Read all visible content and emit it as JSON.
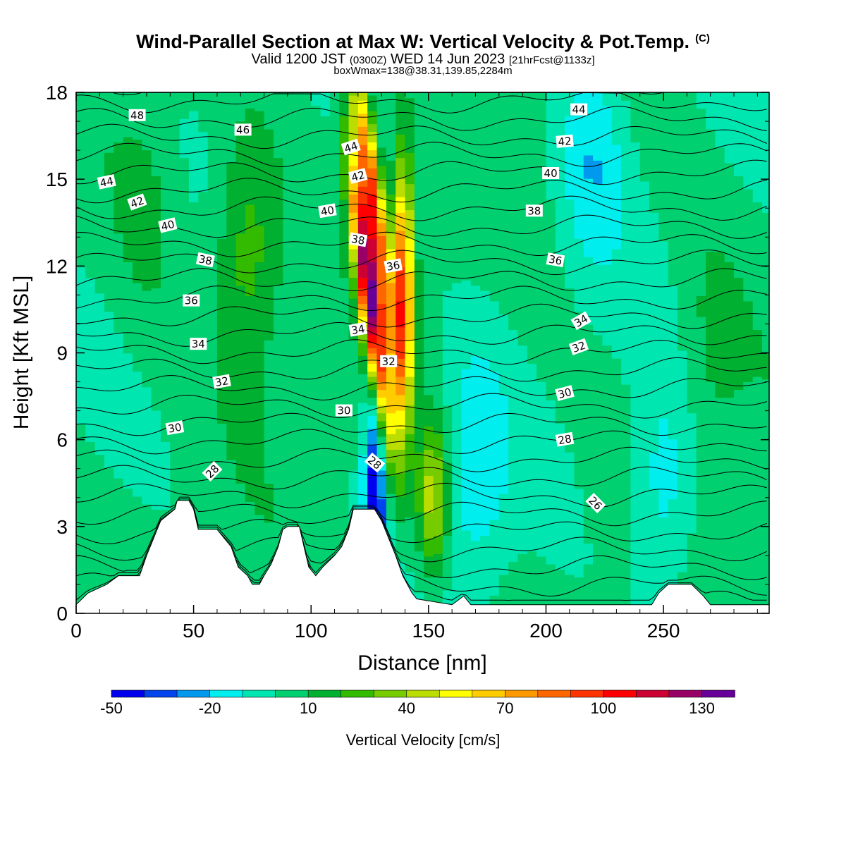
{
  "header": {
    "title": "Wind-Parallel Section at Max W: Vertical Velocity & Pot.Temp.",
    "copyright": "(C)",
    "valid_main_a": "Valid 1200 JST",
    "valid_small_a": "(0300Z)",
    "valid_main_b": "WED 14 Jun 2023",
    "valid_small_b": "[21hrFcst@1133z]",
    "box_info": "boxWmax=138@38.31,139.85,2284m"
  },
  "colors": {
    "terrain": "#ffffff",
    "contour": "#000000",
    "background": "#ffffff"
  },
  "chart_data": {
    "type": "heatmap",
    "xlabel": "Distance [nm]",
    "ylabel": "Height [Kft MSL]",
    "xlim": [
      0,
      295
    ],
    "ylim": [
      0,
      18
    ],
    "xticks": [
      0,
      50,
      100,
      150,
      200,
      250
    ],
    "yticks": [
      0,
      3,
      6,
      9,
      12,
      15,
      18
    ],
    "colorbar": {
      "label": "Vertical Velocity [cm/s]",
      "min": -50,
      "step": 10,
      "tick_values": [
        "-50",
        "-20",
        "10",
        "40",
        "70",
        "100",
        "130"
      ],
      "colors": [
        "#0000ee",
        "#0044ee",
        "#0099ee",
        "#00eeee",
        "#00e6b0",
        "#00d070",
        "#00b030",
        "#33bb00",
        "#77cc00",
        "#bbdd00",
        "#ffff00",
        "#ffcc00",
        "#ff9900",
        "#ff6600",
        "#ff3300",
        "#ff0000",
        "#cc0033",
        "#990066",
        "#660099"
      ]
    },
    "field": [
      {
        "x": 73,
        "y": 12.5,
        "w": 25
      },
      {
        "x": 125,
        "y": 11,
        "w": 125
      },
      {
        "x": 126,
        "y": 14.5,
        "w": 90
      },
      {
        "x": 139,
        "y": 11,
        "w": 90
      },
      {
        "x": 152,
        "y": 4,
        "w": 45
      },
      {
        "x": 127,
        "y": 3.5,
        "w": -50
      },
      {
        "x": 170,
        "y": 5,
        "w": -20
      },
      {
        "x": 220,
        "y": 16,
        "w": -20
      },
      {
        "x": 250,
        "y": 4,
        "w": -20
      },
      {
        "x": 30,
        "y": 14,
        "w": 10
      },
      {
        "x": 270,
        "y": 9,
        "w": 10
      }
    ],
    "terrain_height": [
      {
        "x": 0,
        "y": 0.3
      },
      {
        "x": 5,
        "y": 0.7
      },
      {
        "x": 13,
        "y": 1
      },
      {
        "x": 18,
        "y": 1.3
      },
      {
        "x": 27,
        "y": 1.3
      },
      {
        "x": 30,
        "y": 2
      },
      {
        "x": 33,
        "y": 2.6
      },
      {
        "x": 36,
        "y": 3.2
      },
      {
        "x": 42,
        "y": 3.6
      },
      {
        "x": 43,
        "y": 3.9
      },
      {
        "x": 48,
        "y": 3.9
      },
      {
        "x": 50,
        "y": 3.6
      },
      {
        "x": 52,
        "y": 2.9
      },
      {
        "x": 60,
        "y": 2.9
      },
      {
        "x": 63,
        "y": 2.6
      },
      {
        "x": 66,
        "y": 2.3
      },
      {
        "x": 69,
        "y": 1.6
      },
      {
        "x": 73,
        "y": 1.3
      },
      {
        "x": 75,
        "y": 1.0
      },
      {
        "x": 78,
        "y": 1.0
      },
      {
        "x": 80,
        "y": 1.3
      },
      {
        "x": 83,
        "y": 1.7
      },
      {
        "x": 86,
        "y": 2.3
      },
      {
        "x": 88,
        "y": 2.9
      },
      {
        "x": 90,
        "y": 3.0
      },
      {
        "x": 95,
        "y": 3.0
      },
      {
        "x": 97,
        "y": 2.3
      },
      {
        "x": 99,
        "y": 1.6
      },
      {
        "x": 102,
        "y": 1.3
      },
      {
        "x": 105,
        "y": 1.6
      },
      {
        "x": 110,
        "y": 2.0
      },
      {
        "x": 113,
        "y": 2.3
      },
      {
        "x": 116,
        "y": 2.9
      },
      {
        "x": 118,
        "y": 3.6
      },
      {
        "x": 127,
        "y": 3.6
      },
      {
        "x": 130,
        "y": 3.2
      },
      {
        "x": 133,
        "y": 2.6
      },
      {
        "x": 136,
        "y": 2.0
      },
      {
        "x": 139,
        "y": 1.3
      },
      {
        "x": 141,
        "y": 1.0
      },
      {
        "x": 143,
        "y": 0.7
      },
      {
        "x": 145,
        "y": 0.5
      },
      {
        "x": 160,
        "y": 0.3
      },
      {
        "x": 165,
        "y": 0.6
      },
      {
        "x": 168,
        "y": 0.3
      },
      {
        "x": 245,
        "y": 0.3
      },
      {
        "x": 248,
        "y": 0.7
      },
      {
        "x": 252,
        "y": 1.0
      },
      {
        "x": 262,
        "y": 1.0
      },
      {
        "x": 267,
        "y": 0.6
      },
      {
        "x": 270,
        "y": 0.3
      },
      {
        "x": 295,
        "y": 0.3
      }
    ],
    "contour_labels": [
      {
        "text": "48",
        "x": 26,
        "y": 17.2,
        "angle": 0
      },
      {
        "text": "46",
        "x": 71,
        "y": 16.7,
        "angle": 0
      },
      {
        "text": "44",
        "x": 13,
        "y": 14.9,
        "angle": -12
      },
      {
        "text": "42",
        "x": 26,
        "y": 14.2,
        "angle": -20
      },
      {
        "text": "40",
        "x": 39,
        "y": 13.4,
        "angle": -14
      },
      {
        "text": "38",
        "x": 55,
        "y": 12.2,
        "angle": 12
      },
      {
        "text": "36",
        "x": 49,
        "y": 10.8,
        "angle": 0
      },
      {
        "text": "34",
        "x": 52,
        "y": 9.3,
        "angle": 0
      },
      {
        "text": "32",
        "x": 62,
        "y": 8.0,
        "angle": -10
      },
      {
        "text": "30",
        "x": 42,
        "y": 6.4,
        "angle": -10
      },
      {
        "text": "28",
        "x": 58,
        "y": 4.9,
        "angle": -45
      },
      {
        "text": "44",
        "x": 117,
        "y": 16.1,
        "angle": -18
      },
      {
        "text": "42",
        "x": 120,
        "y": 15.1,
        "angle": -15
      },
      {
        "text": "40",
        "x": 107,
        "y": 13.9,
        "angle": -10
      },
      {
        "text": "38",
        "x": 120,
        "y": 12.9,
        "angle": 10
      },
      {
        "text": "36",
        "x": 135,
        "y": 12.0,
        "angle": -10
      },
      {
        "text": "34",
        "x": 120,
        "y": 9.8,
        "angle": -10
      },
      {
        "text": "32",
        "x": 133,
        "y": 8.7,
        "angle": 0
      },
      {
        "text": "30",
        "x": 114,
        "y": 7.0,
        "angle": 0
      },
      {
        "text": "28",
        "x": 127,
        "y": 5.2,
        "angle": 40
      },
      {
        "text": "44",
        "x": 214,
        "y": 17.4,
        "angle": 0
      },
      {
        "text": "42",
        "x": 208,
        "y": 16.3,
        "angle": -5
      },
      {
        "text": "40",
        "x": 202,
        "y": 15.2,
        "angle": 0
      },
      {
        "text": "38",
        "x": 195,
        "y": 13.9,
        "angle": 0
      },
      {
        "text": "36",
        "x": 204,
        "y": 12.2,
        "angle": 10
      },
      {
        "text": "34",
        "x": 215,
        "y": 10.1,
        "angle": -30
      },
      {
        "text": "32",
        "x": 214,
        "y": 9.2,
        "angle": -20
      },
      {
        "text": "30",
        "x": 208,
        "y": 7.6,
        "angle": -15
      },
      {
        "text": "28",
        "x": 208,
        "y": 6.0,
        "angle": -10
      },
      {
        "text": "26",
        "x": 221,
        "y": 3.8,
        "angle": 45
      }
    ]
  }
}
